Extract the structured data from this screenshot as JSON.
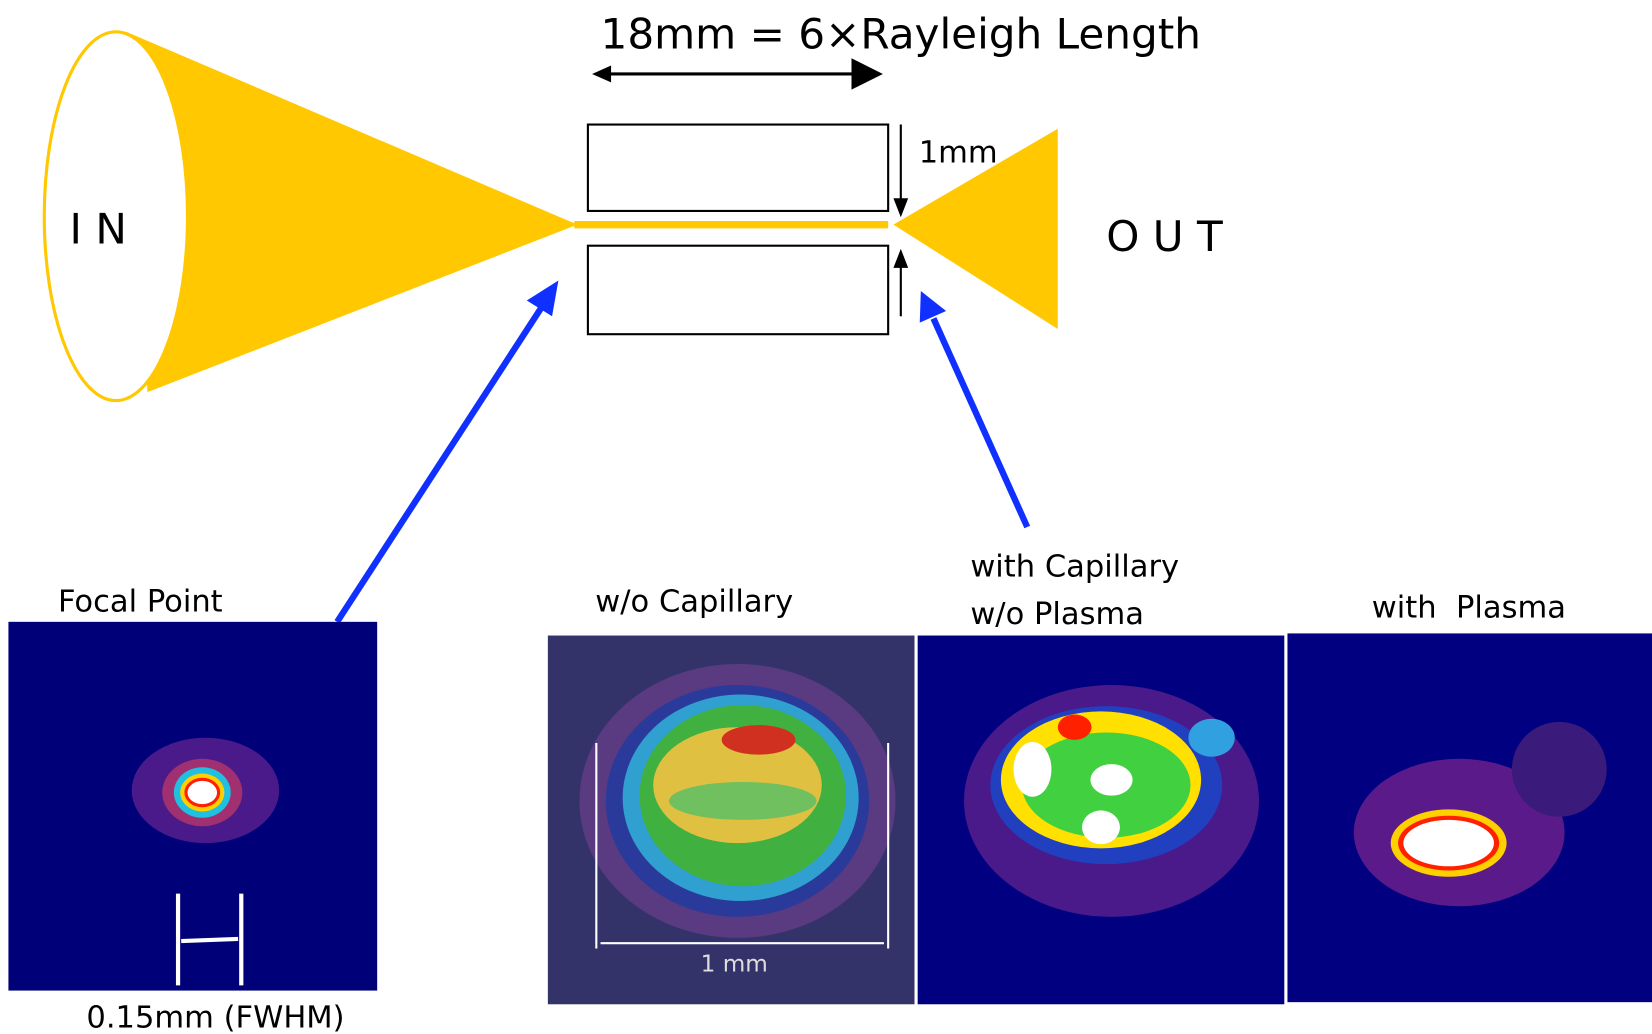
{
  "diagram": {
    "title": "18mm = 6×Rayleigh Length",
    "gap_label": "1mm",
    "input_label": "I N",
    "output_label": "O U T"
  },
  "panels": [
    {
      "label": "Focal Point",
      "caption": "0.15mm (FWHM)"
    },
    {
      "label": "w/o Capillary",
      "scale_label": "1 mm"
    },
    {
      "label_lines": [
        "with Capillary",
        "w/o Plasma"
      ]
    },
    {
      "label": "with  Plasma"
    }
  ]
}
